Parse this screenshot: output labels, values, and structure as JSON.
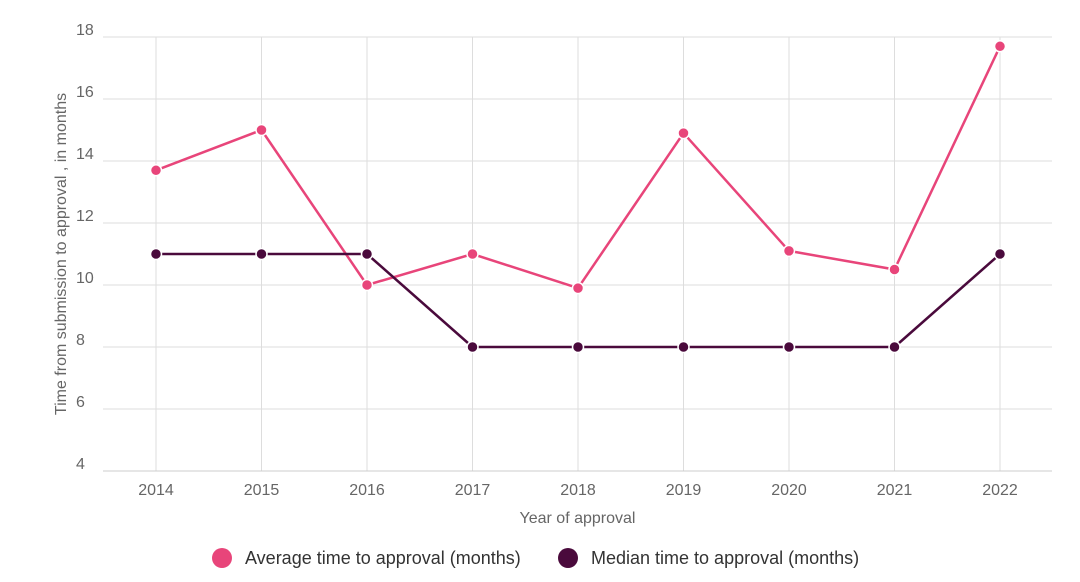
{
  "chart_data": {
    "type": "line",
    "x": [
      "2014",
      "2015",
      "2016",
      "2017",
      "2018",
      "2019",
      "2020",
      "2021",
      "2022"
    ],
    "series": [
      {
        "name": "Average time to approval (months)",
        "color": "#e8457a",
        "values": [
          13.7,
          15.0,
          10.0,
          11.0,
          9.9,
          14.9,
          11.1,
          10.5,
          17.7
        ]
      },
      {
        "name": "Median time to approval (months)",
        "color": "#4a0a3c",
        "values": [
          11,
          11,
          11,
          8,
          8,
          8,
          8,
          8,
          11
        ]
      }
    ],
    "xlabel": "Year of approval",
    "ylabel": "Time from submission to approval , in months",
    "ylim": [
      4,
      18
    ],
    "yticks": [
      4,
      6,
      8,
      10,
      12,
      14,
      16,
      18
    ],
    "grid": true,
    "legend": "bottom-center"
  }
}
